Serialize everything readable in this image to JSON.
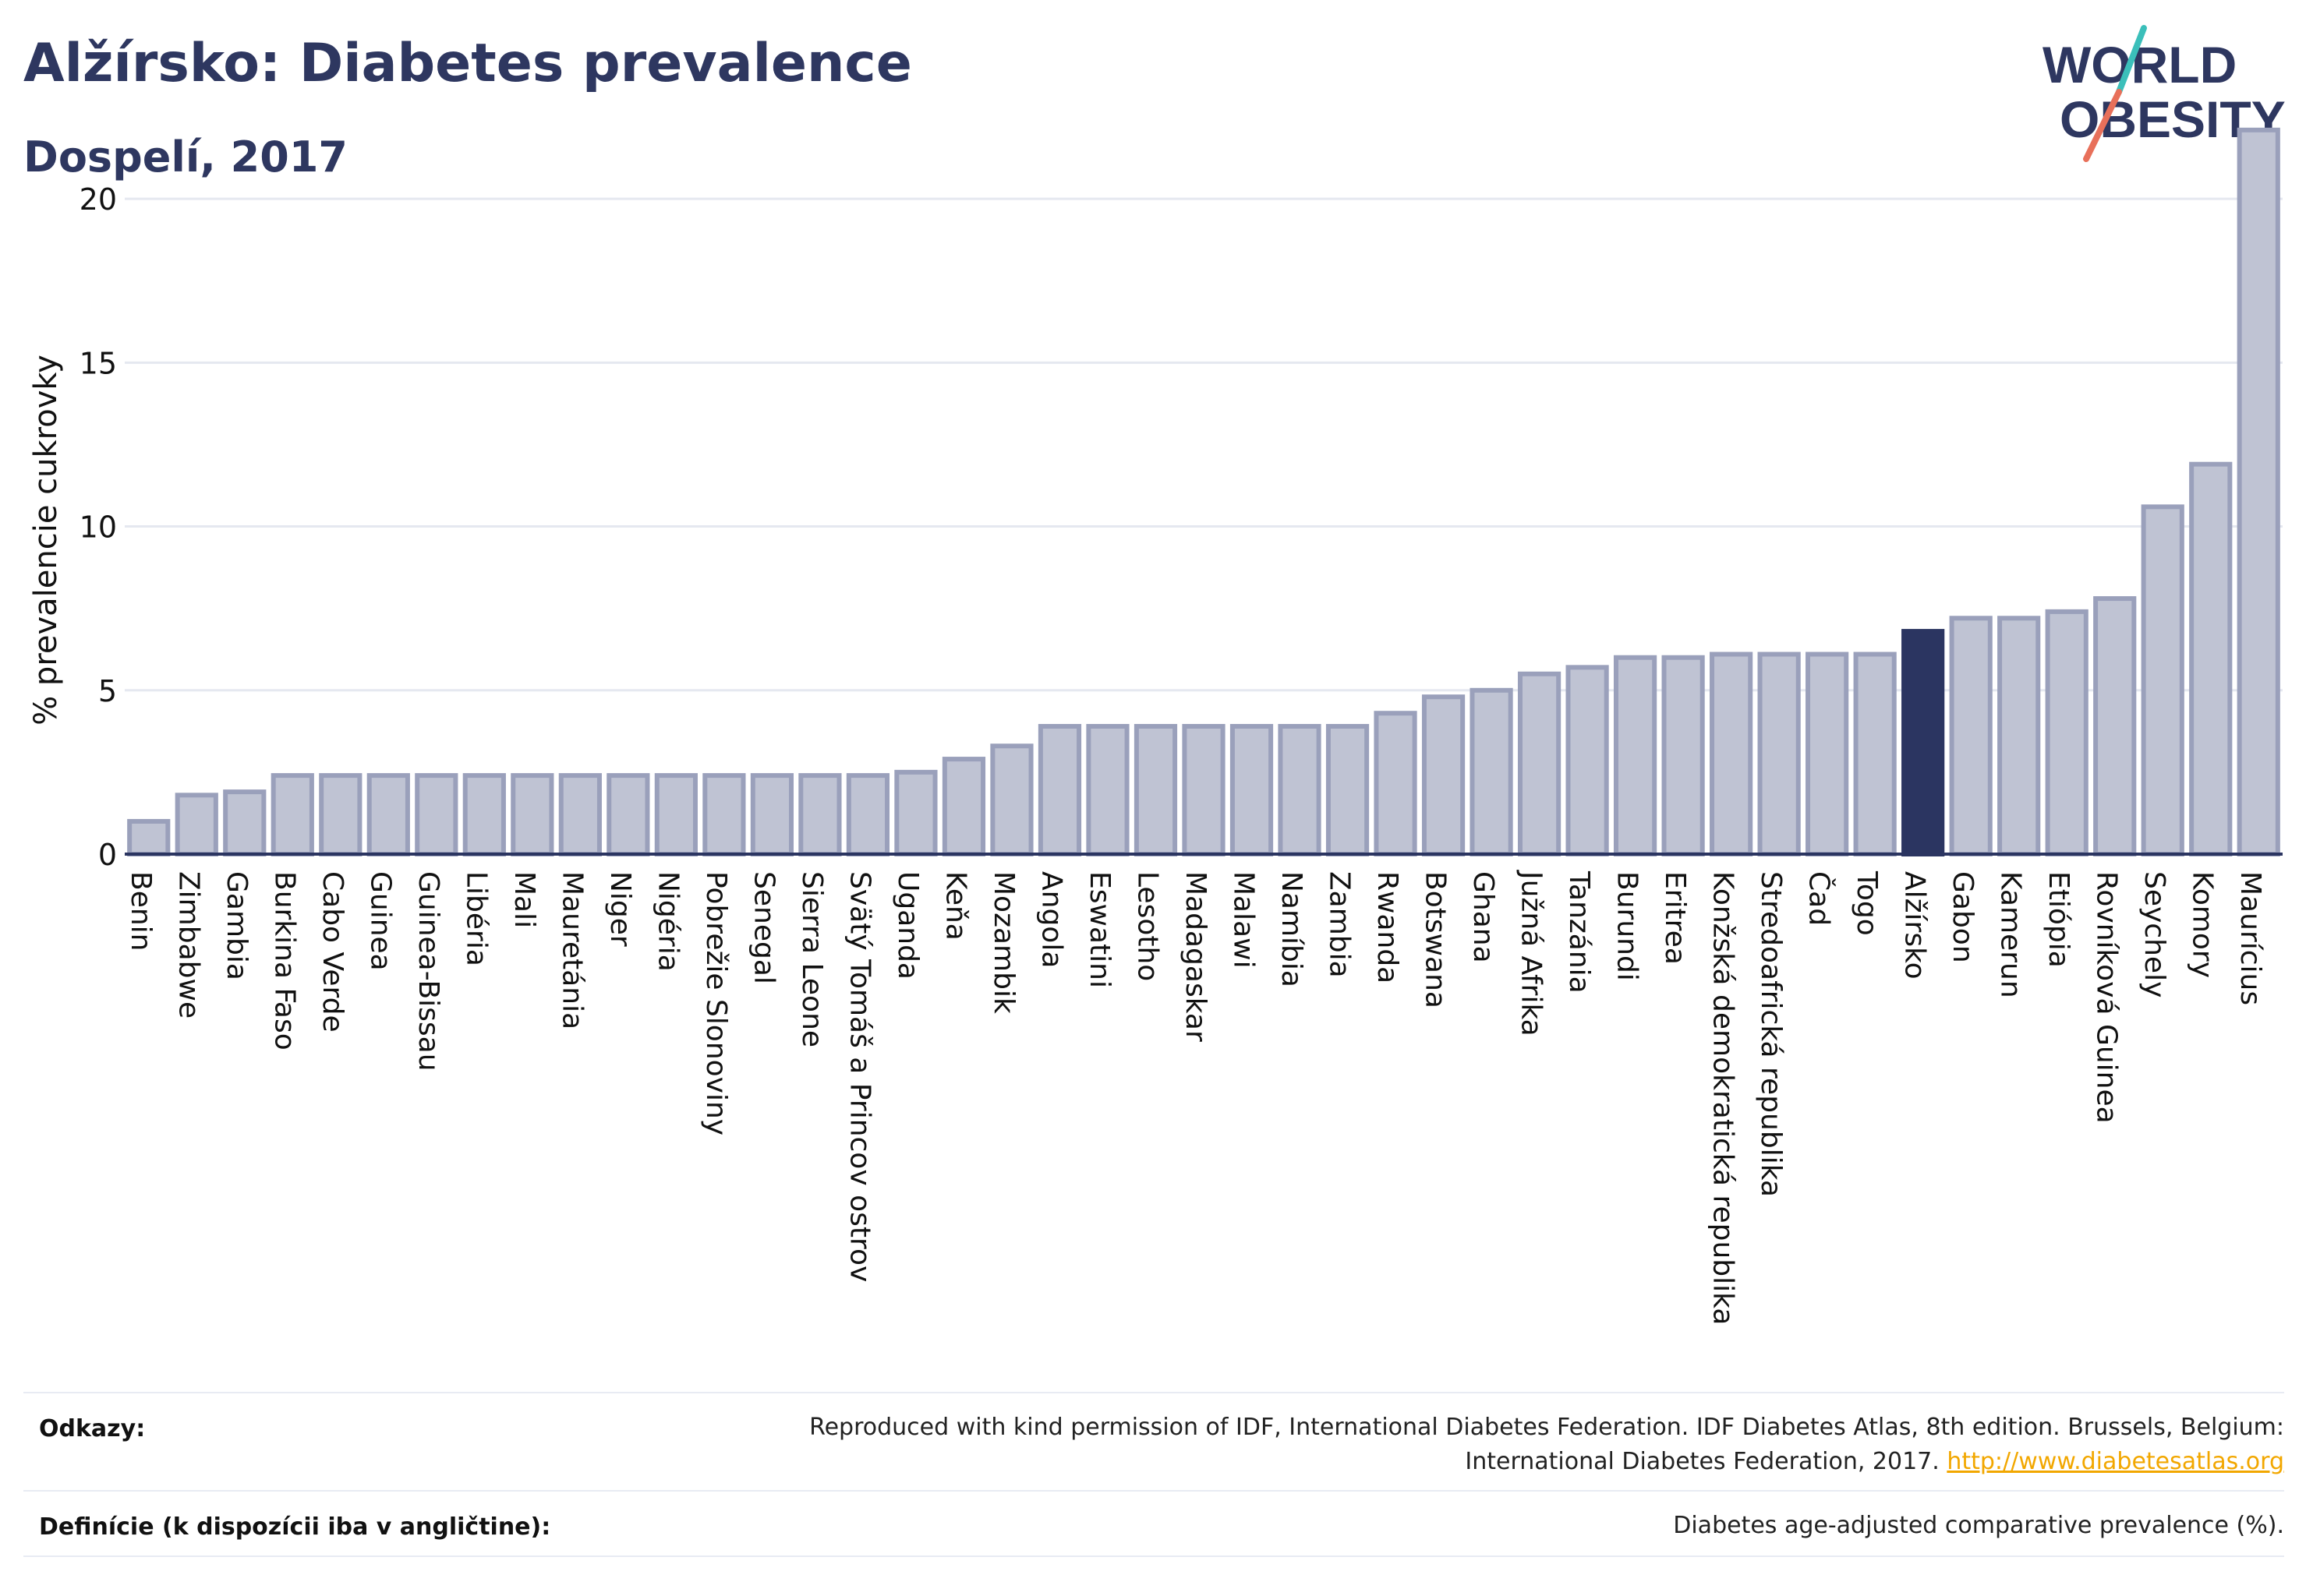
{
  "header": {
    "title": "Alžírsko: Diabetes prevalence",
    "subtitle": "Dospelí, 2017"
  },
  "logo": {
    "line1": "WORLD",
    "line2": "OBESITY",
    "colors": {
      "text": "#2e3760",
      "slash_teal": "#3bbfba",
      "slash_coral": "#e8705a"
    }
  },
  "colors": {
    "bar_fill": "#bfc3d3",
    "bar_stroke": "#9aa0bb",
    "highlight": "#2b3561",
    "grid": "#e5e8f0",
    "axis": "#2b3561"
  },
  "chart_data": {
    "type": "bar",
    "title": "",
    "xlabel": "",
    "ylabel": "% prevalencie cukrovky",
    "ylim": [
      0,
      22.5
    ],
    "yticks": [
      0,
      5,
      10,
      15,
      20
    ],
    "grid": true,
    "highlight": "Alžírsko",
    "categories": [
      "Benin",
      "Zimbabwe",
      "Gambia",
      "Burkina Faso",
      "Cabo Verde",
      "Guinea",
      "Guinea-Bissau",
      "Libéria",
      "Mali",
      "Mauretánia",
      "Niger",
      "Nigéria",
      "Pobrežie Slonoviny",
      "Senegal",
      "Sierra Leone",
      "Svätý Tomáš a Princov ostrov",
      "Uganda",
      "Keňa",
      "Mozambik",
      "Angola",
      "Eswatini",
      "Lesotho",
      "Madagaskar",
      "Malawi",
      "Namíbia",
      "Zambia",
      "Rwanda",
      "Botswana",
      "Ghana",
      "Južná Afrika",
      "Tanzánia",
      "Burundi",
      "Eritrea",
      "Konžská demokratická republika",
      "Stredoafrická republika",
      "Čad",
      "Togo",
      "Alžírsko",
      "Gabon",
      "Kamerun",
      "Etiópia",
      "Rovníková Guinea",
      "Seychely",
      "Komory",
      "Maurícius"
    ],
    "values": [
      1.0,
      1.8,
      1.9,
      2.4,
      2.4,
      2.4,
      2.4,
      2.4,
      2.4,
      2.4,
      2.4,
      2.4,
      2.4,
      2.4,
      2.4,
      2.4,
      2.5,
      2.9,
      3.3,
      3.9,
      3.9,
      3.9,
      3.9,
      3.9,
      3.9,
      3.9,
      4.3,
      4.8,
      5.0,
      5.5,
      5.7,
      6.0,
      6.0,
      6.1,
      6.1,
      6.1,
      6.1,
      6.8,
      7.2,
      7.2,
      7.4,
      7.8,
      10.6,
      11.9,
      22.1
    ]
  },
  "footer": {
    "references_label": "Odkazy:",
    "references_text": "Reproduced with kind permission of IDF, International Diabetes Federation. IDF Diabetes Atlas, 8th edition. Brussels, Belgium: International Diabetes Federation, 2017.",
    "references_link": "http://www.diabetesatlas.org",
    "definition_label": "Definície (k dispozícii iba v angličtine):",
    "definition_text": "Diabetes age-adjusted comparative prevalence (%)."
  }
}
